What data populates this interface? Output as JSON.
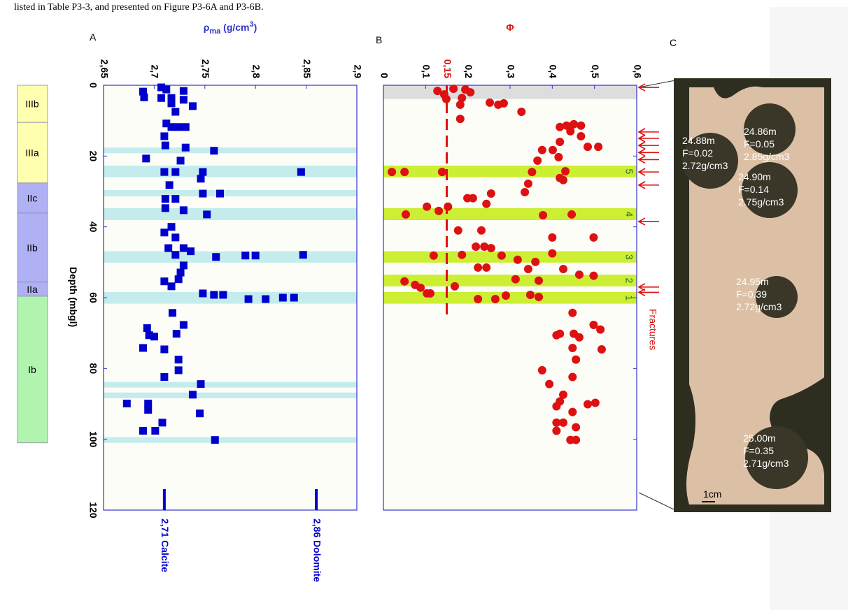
{
  "header": {
    "text": "listed in Table P3-3, and presented on Figure P3-6A and P3-6B."
  },
  "units": [
    {
      "label": "IIIb",
      "top": 0,
      "bottom": 10.5,
      "color": "#ffffb0"
    },
    {
      "label": "IIIa",
      "top": 10.5,
      "bottom": 27.6,
      "color": "#ffffb0"
    },
    {
      "label": "IIc",
      "top": 27.6,
      "bottom": 36.1,
      "color": "#b0b0f4"
    },
    {
      "label": "IIb",
      "top": 36.1,
      "bottom": 55.6,
      "color": "#b0b0f4"
    },
    {
      "label": "IIa",
      "top": 55.6,
      "bottom": 59.6,
      "color": "#b0b0f4"
    },
    {
      "label": "Ib",
      "top": 59.6,
      "bottom": 101,
      "color": "#b0f4b0"
    }
  ],
  "ylabel": "Depth (mbgl)",
  "chart_data": [
    {
      "type": "scatter",
      "panel": "A",
      "marker": "square",
      "color": "#0000cc",
      "axis_color": "#3333cc",
      "xlabel": {
        "symbol": "ρ",
        "sub": "ma",
        "unit": " (g/cm",
        "sup": "3",
        "close": ")"
      },
      "xlim": [
        2.65,
        2.9
      ],
      "xticks": [
        {
          "value": 2.65,
          "label": "2,65"
        },
        {
          "value": 2.7,
          "label": "2,7"
        },
        {
          "value": 2.75,
          "label": "2,75"
        },
        {
          "value": 2.8,
          "label": "2,8"
        },
        {
          "value": 2.85,
          "label": "2,85"
        },
        {
          "value": 2.9,
          "label": "2,9"
        }
      ],
      "ylim": [
        0,
        120
      ],
      "yticks": [
        0,
        20,
        40,
        60,
        80,
        100,
        120
      ],
      "y_inverted": true,
      "ytick_labels": true,
      "bands": [
        [
          17.6,
          19.2
        ],
        [
          22.7,
          26.0
        ],
        [
          29.6,
          31.4
        ],
        [
          34.7,
          38.1
        ],
        [
          46.9,
          50.1
        ],
        [
          58.4,
          61.7
        ],
        [
          83.8,
          85.4
        ],
        [
          86.8,
          88.4
        ],
        [
          99.4,
          101.0
        ]
      ],
      "band_color": "#c4ecec",
      "reference_lines": [
        {
          "value": 2.71,
          "label": "2,71  Calcite"
        },
        {
          "value": 2.86,
          "label": "2,86  Dolomite"
        }
      ],
      "x": [
        2.689,
        2.69,
        2.707,
        2.712,
        2.729,
        2.707,
        2.717,
        2.729,
        2.717,
        2.738,
        2.721,
        2.712,
        2.717,
        2.724,
        2.731,
        2.71,
        2.711,
        2.731,
        2.759,
        2.692,
        2.726,
        2.71,
        2.721,
        2.748,
        2.845,
        2.746,
        2.715,
        2.748,
        2.765,
        2.711,
        2.721,
        2.711,
        2.729,
        2.752,
        2.717,
        2.71,
        2.721,
        2.714,
        2.729,
        2.736,
        2.721,
        2.761,
        2.79,
        2.8,
        2.847,
        2.729,
        2.726,
        2.724,
        2.71,
        2.717,
        2.748,
        2.759,
        2.768,
        2.793,
        2.81,
        2.827,
        2.838,
        2.718,
        2.693,
        2.729,
        2.695,
        2.7,
        2.722,
        2.689,
        2.71,
        2.724,
        2.724,
        2.71,
        2.746,
        2.738,
        2.673,
        2.694,
        2.694,
        2.745,
        2.708,
        2.689,
        2.701,
        2.76
      ],
      "y": [
        1.8,
        3.4,
        0.6,
        1.2,
        1.6,
        3.6,
        3.6,
        4.1,
        5.1,
        5.9,
        7.5,
        10.8,
        11.8,
        11.8,
        11.8,
        14.4,
        17.0,
        17.6,
        18.5,
        20.7,
        21.3,
        24.5,
        24.5,
        24.5,
        24.5,
        26.4,
        28.2,
        30.6,
        30.6,
        32.1,
        32.1,
        34.7,
        35.3,
        36.5,
        40.0,
        41.6,
        43.0,
        46.0,
        46.0,
        46.9,
        47.9,
        48.5,
        48.1,
        48.1,
        47.9,
        50.9,
        52.9,
        54.8,
        55.4,
        56.8,
        58.8,
        59.2,
        59.2,
        60.4,
        60.4,
        60.0,
        60.0,
        64.3,
        68.6,
        67.7,
        70.6,
        71.0,
        70.2,
        74.2,
        74.6,
        77.5,
        80.5,
        82.4,
        84.4,
        87.4,
        89.9,
        89.9,
        91.7,
        92.7,
        95.3,
        97.6,
        97.6,
        100.2
      ]
    },
    {
      "type": "scatter",
      "panel": "B",
      "marker": "circle",
      "color": "#dd1111",
      "axis_color": "#3333cc",
      "xlabel": {
        "symbol": "Φ"
      },
      "xlabel_color": "#dd1111",
      "xlim": [
        0,
        0.6
      ],
      "xticks": [
        0,
        {
          "value": 0.1,
          "label": "0,1"
        },
        {
          "value": 0.2,
          "label": "0,2"
        },
        {
          "value": 0.3,
          "label": "0,3"
        },
        {
          "value": 0.4,
          "label": "0,4"
        },
        {
          "value": 0.5,
          "label": "0,5"
        },
        {
          "value": 0.6,
          "label": "0,6"
        }
      ],
      "ylim": [
        0,
        120
      ],
      "yticks": [
        0,
        20,
        40,
        60,
        80,
        100,
        120
      ],
      "y_inverted": true,
      "ytick_labels": false,
      "gray_band": [
        0,
        3.9
      ],
      "bands": [
        [
          22.7,
          26.0
        ],
        [
          34.7,
          38.1
        ],
        [
          46.9,
          50.1
        ],
        [
          53.5,
          56.8
        ],
        [
          58.4,
          61.7
        ]
      ],
      "band_labels": [
        5,
        4,
        3,
        2,
        1
      ],
      "band_color": "#ccee33",
      "threshold": {
        "value": 0.15,
        "label": "0,15",
        "depth_end": 65
      },
      "fractures": {
        "label": "Fractures",
        "depths": [
          0.6,
          13.2,
          15.0,
          17.0,
          19.0,
          21.0,
          24.5,
          28.2,
          38.5,
          57.0,
          58.5
        ]
      },
      "x": [
        0.128,
        0.144,
        0.166,
        0.194,
        0.206,
        0.149,
        0.186,
        0.182,
        0.252,
        0.272,
        0.285,
        0.327,
        0.182,
        0.418,
        0.434,
        0.451,
        0.468,
        0.443,
        0.468,
        0.418,
        0.484,
        0.509,
        0.376,
        0.401,
        0.365,
        0.415,
        0.431,
        0.02,
        0.05,
        0.139,
        0.352,
        0.418,
        0.426,
        0.343,
        0.335,
        0.255,
        0.199,
        0.212,
        0.244,
        0.103,
        0.131,
        0.153,
        0.053,
        0.378,
        0.446,
        0.4,
        0.498,
        0.177,
        0.232,
        0.219,
        0.239,
        0.255,
        0.4,
        0.186,
        0.119,
        0.28,
        0.318,
        0.36,
        0.224,
        0.244,
        0.343,
        0.426,
        0.464,
        0.498,
        0.05,
        0.075,
        0.088,
        0.169,
        0.313,
        0.368,
        0.103,
        0.111,
        0.29,
        0.348,
        0.368,
        0.224,
        0.265,
        0.448,
        0.498,
        0.514,
        0.418,
        0.41,
        0.451,
        0.464,
        0.448,
        0.517,
        0.456,
        0.376,
        0.448,
        0.393,
        0.426,
        0.418,
        0.502,
        0.484,
        0.41,
        0.448,
        0.41,
        0.426,
        0.456,
        0.41,
        0.443,
        0.456
      ],
      "y": [
        1.6,
        2.6,
        1.0,
        1.2,
        2.0,
        3.9,
        3.6,
        5.5,
        4.9,
        5.5,
        5.1,
        7.5,
        9.5,
        11.8,
        11.4,
        11.0,
        11.4,
        13.0,
        14.4,
        16.0,
        17.4,
        17.4,
        18.3,
        18.3,
        21.3,
        20.3,
        24.3,
        24.5,
        24.5,
        24.5,
        24.5,
        26.2,
        26.8,
        27.8,
        30.2,
        30.6,
        31.9,
        31.9,
        33.5,
        34.3,
        35.5,
        34.3,
        36.5,
        36.7,
        36.5,
        43.0,
        43.0,
        41.0,
        41.0,
        45.6,
        45.6,
        46.0,
        47.5,
        47.9,
        48.1,
        48.1,
        49.3,
        49.9,
        51.5,
        51.5,
        51.9,
        51.9,
        53.5,
        53.8,
        55.4,
        56.4,
        57.2,
        56.8,
        54.8,
        55.2,
        58.8,
        58.8,
        59.4,
        59.2,
        59.8,
        60.4,
        60.4,
        64.3,
        67.7,
        69.0,
        70.2,
        70.6,
        70.2,
        71.2,
        74.2,
        74.6,
        77.5,
        80.5,
        82.4,
        84.4,
        87.4,
        89.3,
        89.7,
        90.1,
        90.7,
        92.3,
        95.3,
        95.3,
        96.6,
        97.6,
        100.2,
        100.2
      ]
    }
  ],
  "photo": {
    "panel": "C",
    "scale": "1cm",
    "samples": [
      {
        "depth": "24.86m",
        "phi": "F=0.05",
        "rho": "2.85g/cm3"
      },
      {
        "depth": "24.88m",
        "phi": "F=0.02",
        "rho": "2.72g/cm3"
      },
      {
        "depth": "24.90m",
        "phi": "F=0.14",
        "rho": "2.75g/cm3"
      },
      {
        "depth": "24.95m",
        "phi": "F=0.39",
        "rho": "2.72g/cm3"
      },
      {
        "depth": "25.00m",
        "phi": "F=0.35",
        "rho": "2.71g/cm3"
      }
    ]
  }
}
